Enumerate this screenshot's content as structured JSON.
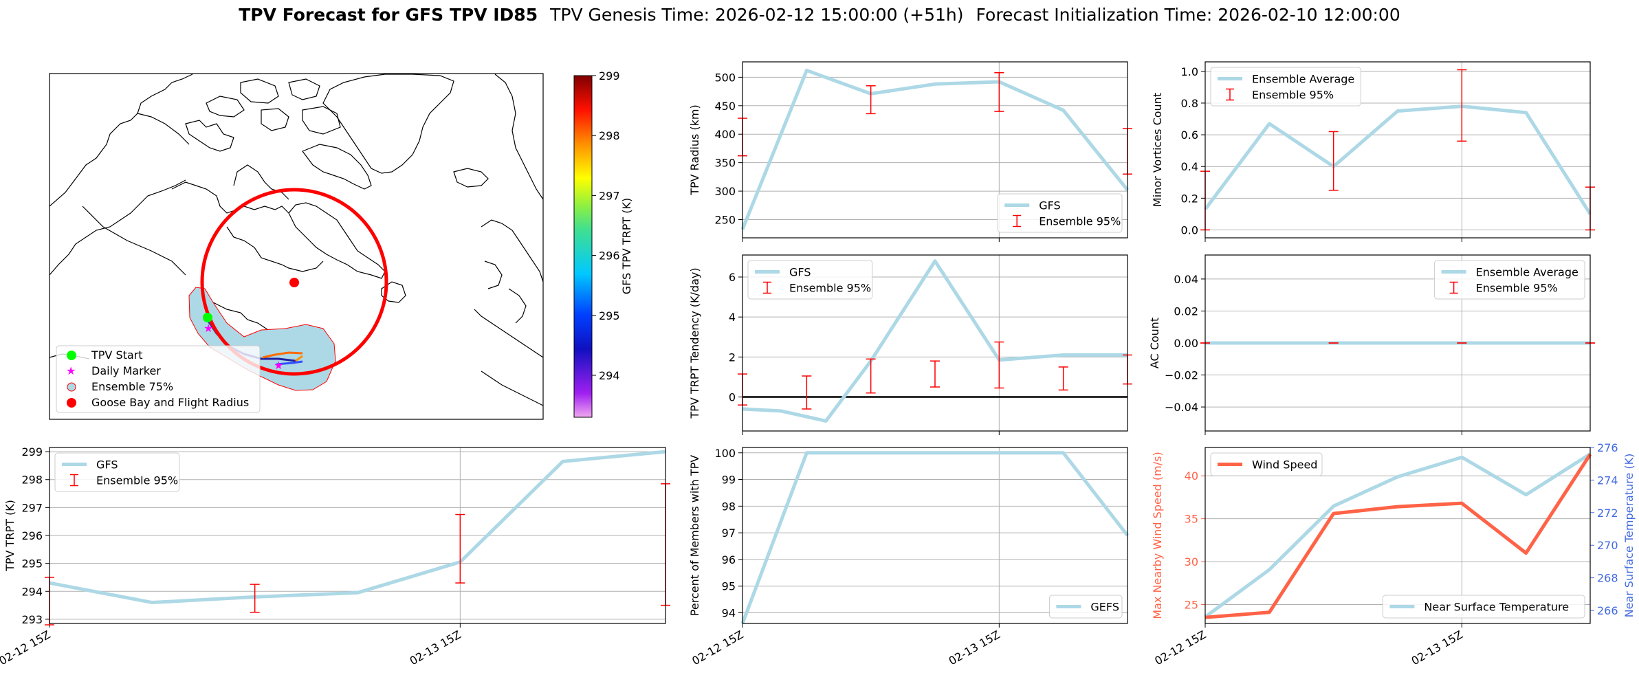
{
  "title": {
    "bold": "TPV Forecast for GFS TPV ID85",
    "genesis": "TPV Genesis Time: 2026-02-12 15:00:00 (+51h)",
    "init": "Forecast Initialization Time: 2026-02-10 12:00:00"
  },
  "colors": {
    "light_blue": "#add8e6",
    "red": "#ff0000",
    "tomato": "#ff6347",
    "royal_blue": "#4169e1",
    "green": "#00ff00",
    "magenta": "#ff00ff"
  },
  "map": {
    "legend": [
      "TPV Start",
      "Daily Marker",
      "Ensemble 75%",
      "Goose Bay and Flight Radius"
    ],
    "colorbar": {
      "label": "GFS TPV TRPT (K)",
      "ticks": [
        "294",
        "295",
        "296",
        "297",
        "298",
        "299"
      ],
      "min": 293.3,
      "max": 299
    }
  },
  "chart_data": [
    {
      "id": "trpt",
      "type": "line",
      "ylabel": "TPV TRPT (K)",
      "xlim": [
        0,
        6
      ],
      "ylim": [
        292.85,
        299.15
      ],
      "yticks": [
        293,
        294,
        295,
        296,
        297,
        298,
        299
      ],
      "xticks": [
        0,
        4
      ],
      "xticklabels": [
        "02-12 15Z",
        "02-13 15Z"
      ],
      "series": [
        {
          "name": "GFS",
          "x": [
            0,
            1,
            2,
            3,
            4,
            5,
            6
          ],
          "values": [
            294.3,
            293.6,
            293.8,
            293.95,
            295.05,
            298.65,
            299.0
          ]
        }
      ],
      "errorbars": {
        "name": "Ensemble 95%",
        "x": [
          0,
          2,
          4,
          6
        ],
        "low": [
          292.8,
          293.25,
          294.3,
          293.5
        ],
        "high": [
          294.5,
          294.25,
          296.75,
          297.85
        ]
      },
      "legend_pos": "upper-left"
    },
    {
      "id": "radius",
      "type": "line",
      "ylabel": "TPV Radius (km)",
      "xlim": [
        0,
        6
      ],
      "ylim": [
        218,
        527
      ],
      "yticks": [
        250,
        300,
        350,
        400,
        450,
        500
      ],
      "xticks": [
        0,
        4
      ],
      "xticklabels": [
        "",
        ""
      ],
      "series": [
        {
          "name": "GFS",
          "x": [
            0,
            1,
            2,
            3,
            4,
            5,
            6
          ],
          "values": [
            233,
            512,
            471,
            488,
            492,
            442,
            302
          ]
        }
      ],
      "errorbars": {
        "name": "Ensemble 95%",
        "x": [
          0,
          2,
          4,
          6
        ],
        "low": [
          362,
          436,
          440,
          330
        ],
        "high": [
          428,
          485,
          508,
          410
        ]
      },
      "legend_pos": "lower-right"
    },
    {
      "id": "minor",
      "type": "line",
      "ylabel": "Minor Vortices Count",
      "xlim": [
        0,
        6
      ],
      "ylim": [
        -0.05,
        1.06
      ],
      "yticks": [
        0.0,
        0.2,
        0.4,
        0.6,
        0.8,
        1.0
      ],
      "yticklabels": [
        "0.0",
        "0.2",
        "0.4",
        "0.6",
        "0.8",
        "1.0"
      ],
      "xticks": [
        0,
        4
      ],
      "xticklabels": [
        "",
        ""
      ],
      "series": [
        {
          "name": "Ensemble Average",
          "x": [
            0,
            1,
            2,
            3,
            4,
            5,
            6
          ],
          "values": [
            0.13,
            0.67,
            0.4,
            0.75,
            0.78,
            0.74,
            0.1
          ]
        }
      ],
      "errorbars": {
        "name": "Ensemble 95%",
        "x": [
          0,
          2,
          4,
          6
        ],
        "low": [
          0.0,
          0.25,
          0.56,
          0.0
        ],
        "high": [
          0.37,
          0.62,
          1.01,
          0.27
        ]
      },
      "legend_pos": "upper-left"
    },
    {
      "id": "tendency",
      "type": "line",
      "ylabel": "TPV TRPT Tendency (K/day)",
      "xlim": [
        0,
        6
      ],
      "ylim": [
        -1.7,
        7.1
      ],
      "yticks": [
        0,
        2,
        4,
        6
      ],
      "xticks": [
        0,
        4
      ],
      "xticklabels": [
        "",
        ""
      ],
      "zero_line": true,
      "series": [
        {
          "name": "GFS",
          "x": [
            0,
            0.6,
            1.3,
            2,
            3,
            4,
            5,
            6
          ],
          "values": [
            -0.6,
            -0.7,
            -1.2,
            1.8,
            6.8,
            1.85,
            2.1,
            2.1
          ]
        }
      ],
      "errorbars": {
        "name": "Ensemble 95%",
        "x": [
          0,
          1,
          2,
          3,
          4,
          5,
          6
        ],
        "low": [
          -0.4,
          -0.6,
          0.2,
          0.5,
          0.45,
          0.35,
          0.65
        ],
        "high": [
          1.15,
          1.05,
          1.9,
          1.8,
          2.75,
          1.5,
          2.1
        ]
      },
      "legend_pos": "upper-left"
    },
    {
      "id": "ac",
      "type": "line",
      "ylabel": "AC Count",
      "xlim": [
        0,
        6
      ],
      "ylim": [
        -0.055,
        0.055
      ],
      "yticks": [
        -0.04,
        -0.02,
        0.0,
        0.02,
        0.04
      ],
      "yticklabels": [
        "−0.04",
        "−0.02",
        "0.00",
        "0.02",
        "0.04"
      ],
      "xticks": [
        0,
        4
      ],
      "xticklabels": [
        "",
        ""
      ],
      "series": [
        {
          "name": "Ensemble Average",
          "x": [
            0,
            6
          ],
          "values": [
            0,
            0
          ]
        }
      ],
      "errorbars": {
        "name": "Ensemble 95%",
        "x": [
          0,
          2,
          4,
          6
        ],
        "low": [
          0,
          0,
          0,
          0
        ],
        "high": [
          0,
          0,
          0,
          0
        ]
      },
      "legend_pos": "upper-right"
    },
    {
      "id": "percent",
      "type": "line",
      "ylabel": "Percent of Members with TPV",
      "xlim": [
        0,
        6
      ],
      "ylim": [
        93.6,
        100.2
      ],
      "yticks": [
        94,
        95,
        96,
        97,
        98,
        99,
        100
      ],
      "xticks": [
        0,
        4
      ],
      "xticklabels": [
        "02-12 15Z",
        "02-13 15Z"
      ],
      "series": [
        {
          "name": "GEFS",
          "x": [
            0,
            1,
            2,
            3,
            4,
            5,
            6
          ],
          "values": [
            93.6,
            100,
            100,
            100,
            100,
            100,
            96.9
          ]
        }
      ],
      "legend_pos": "lower-right"
    },
    {
      "id": "wind",
      "type": "line",
      "ylabel": "Max Nearby Wind Speed (m/s)",
      "ylabel2": "Near Surface Temperature (K)",
      "xlim": [
        0,
        6
      ],
      "ylim": [
        22.8,
        43.3
      ],
      "y2lim": [
        265.2,
        276.0
      ],
      "yticks": [
        25,
        30,
        35,
        40
      ],
      "y2ticks": [
        266,
        268,
        270,
        272,
        274,
        276
      ],
      "xticks": [
        0,
        4
      ],
      "xticklabels": [
        "02-12 15Z",
        "02-13 15Z"
      ],
      "series": [
        {
          "name": "Wind Speed",
          "axis": "left",
          "x": [
            0,
            1,
            2,
            3,
            4,
            5,
            6
          ],
          "values": [
            23.5,
            24.1,
            35.6,
            36.4,
            36.8,
            31.0,
            42.5
          ]
        },
        {
          "name": "Near Surface Temperature",
          "axis": "right",
          "x": [
            0,
            1,
            2,
            3,
            4,
            5,
            6
          ],
          "values": [
            265.6,
            268.5,
            272.4,
            274.2,
            275.4,
            273.1,
            275.6
          ]
        }
      ]
    }
  ]
}
